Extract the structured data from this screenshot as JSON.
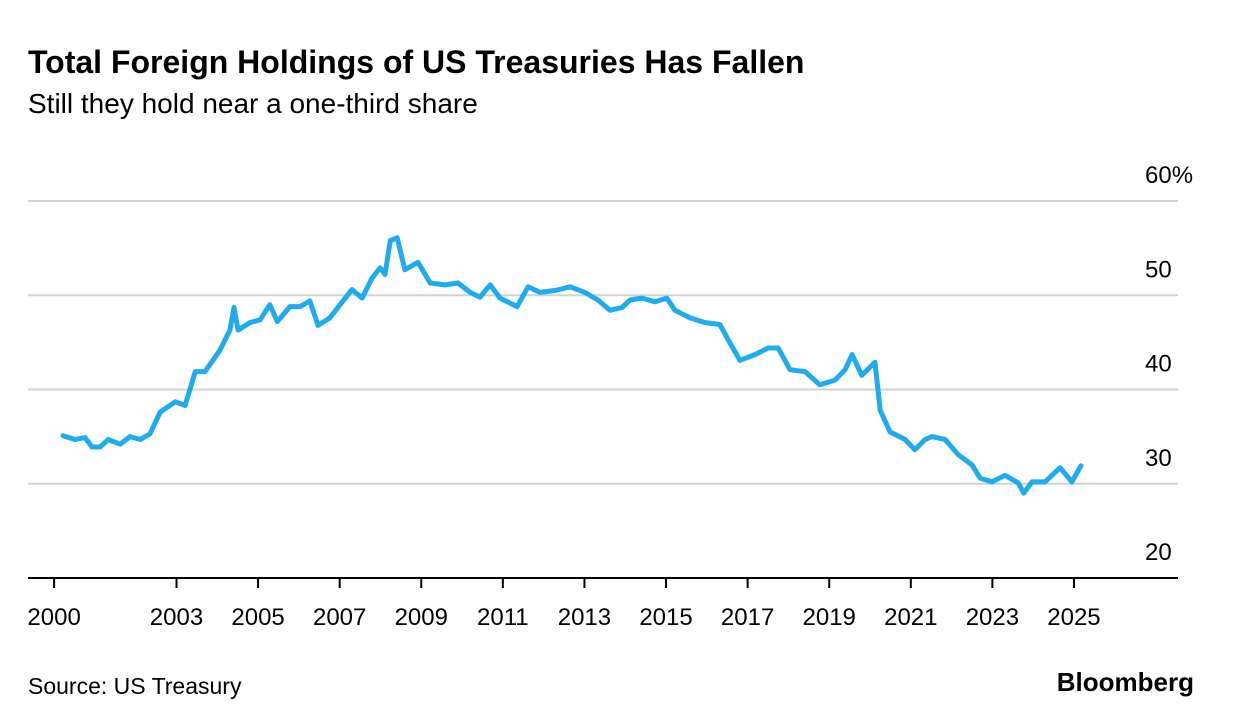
{
  "chart_data": {
    "type": "line",
    "title": "Total Foreign Holdings of US Treasuries Has Fallen",
    "subtitle": "Still they hold near a one-third share",
    "source": "Source: US Treasury",
    "logo": "Bloomberg",
    "color": "#1fabef",
    "grid": true,
    "x": [
      2000.22,
      2000.51,
      2000.76,
      2000.93,
      2001.13,
      2001.32,
      2001.62,
      2001.86,
      2002.11,
      2002.35,
      2002.6,
      2002.97,
      2003.21,
      2003.46,
      2003.7,
      2004.07,
      2004.31,
      2004.41,
      2004.51,
      2004.8,
      2005.05,
      2005.29,
      2005.47,
      2005.78,
      2006.03,
      2006.27,
      2006.47,
      2006.76,
      2007.01,
      2007.3,
      2007.55,
      2007.79,
      2007.99,
      2008.11,
      2008.24,
      2008.41,
      2008.6,
      2008.92,
      2009.22,
      2009.58,
      2009.9,
      2010.2,
      2010.44,
      2010.69,
      2010.93,
      2011.35,
      2011.62,
      2011.91,
      2012.28,
      2012.65,
      2013.01,
      2013.33,
      2013.63,
      2013.92,
      2014.12,
      2014.41,
      2014.73,
      2015.02,
      2015.22,
      2015.59,
      2015.96,
      2016.32,
      2016.52,
      2016.81,
      2017.18,
      2017.5,
      2017.75,
      2018.04,
      2018.41,
      2018.77,
      2019.14,
      2019.39,
      2019.56,
      2019.8,
      2020.12,
      2020.25,
      2020.49,
      2020.86,
      2021.1,
      2021.35,
      2021.52,
      2021.84,
      2022.16,
      2022.5,
      2022.7,
      2022.99,
      2023.31,
      2023.63,
      2023.77,
      2023.97,
      2024.29,
      2024.66,
      2024.95,
      2025.17
    ],
    "values": [
      35.1,
      34.7,
      34.9,
      33.9,
      33.9,
      34.7,
      34.2,
      35.0,
      34.7,
      35.3,
      37.6,
      38.7,
      38.3,
      41.9,
      41.9,
      44.2,
      46.3,
      48.7,
      46.3,
      47.1,
      47.4,
      49.0,
      47.2,
      48.8,
      48.8,
      49.4,
      46.8,
      47.6,
      49.0,
      50.6,
      49.7,
      51.8,
      52.9,
      52.2,
      55.8,
      56.1,
      52.7,
      53.5,
      51.3,
      51.1,
      51.3,
      50.3,
      49.8,
      51.1,
      49.7,
      48.8,
      50.9,
      50.3,
      50.5,
      50.9,
      50.3,
      49.5,
      48.4,
      48.7,
      49.5,
      49.7,
      49.3,
      49.7,
      48.4,
      47.6,
      47.1,
      46.9,
      45.3,
      43.1,
      43.7,
      44.4,
      44.4,
      42.1,
      41.9,
      40.5,
      41.0,
      42.1,
      43.7,
      41.5,
      42.9,
      37.8,
      35.5,
      34.7,
      33.6,
      34.7,
      35.0,
      34.7,
      33.1,
      32.0,
      30.6,
      30.2,
      30.9,
      30.1,
      29.0,
      30.2,
      30.2,
      31.7,
      30.2,
      31.9
    ],
    "xlim": [
      1999.36,
      2027.55
    ],
    "xticks": [
      2000,
      2003,
      2005,
      2007,
      2009,
      2011,
      2013,
      2015,
      2017,
      2019,
      2021,
      2023,
      2025
    ],
    "ylim": [
      20,
      60
    ],
    "yticks": [
      20,
      30,
      40,
      50,
      {
        "value": 60,
        "label": "60%"
      }
    ]
  }
}
